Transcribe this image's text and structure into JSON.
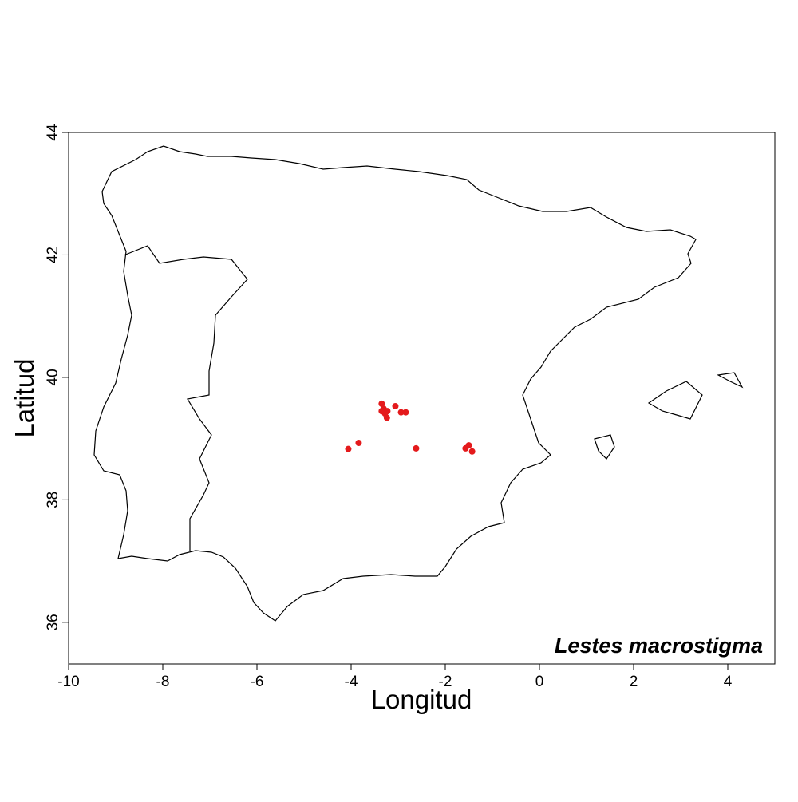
{
  "chart_data": {
    "type": "scatter",
    "annotation": "Lestes macrostigma",
    "x_label": "Longitud",
    "y_label": "Latitud",
    "color": "#e41a1c",
    "x": [
      -4.06,
      -3.84,
      -3.35,
      -3.31,
      -3.28,
      -3.24,
      -3.35,
      -3.23,
      -3.06,
      -2.94,
      -2.84,
      -2.62,
      -1.57,
      -1.5,
      -1.43
    ],
    "values": [
      38.83,
      38.93,
      39.57,
      39.49,
      39.41,
      39.34,
      39.45,
      39.45,
      39.53,
      39.43,
      39.43,
      38.84,
      38.84,
      38.89,
      38.79
    ],
    "xlim": [
      -10,
      5
    ],
    "ylim": [
      35.32,
      44
    ],
    "xticks": [
      -10,
      -8,
      -6,
      -4,
      -2,
      0,
      2,
      4
    ],
    "yticks": [
      36,
      38,
      40,
      42,
      44
    ]
  }
}
